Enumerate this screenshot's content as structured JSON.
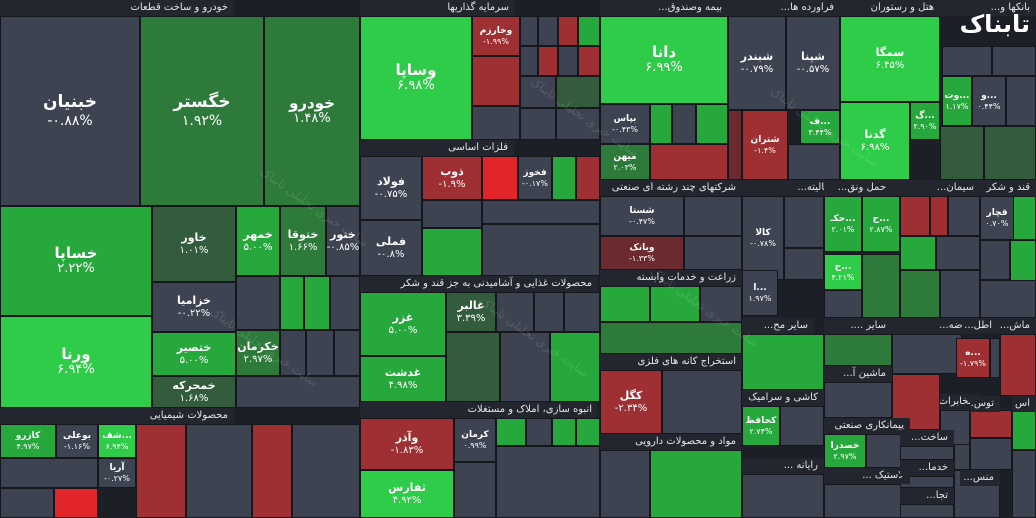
{
  "colors": {
    "strong_green": "#2ecc48",
    "green": "#27a83c",
    "mid_green": "#2d7a3a",
    "dark_green": "#335c3c",
    "neutral": "#3d4350",
    "dark_red": "#6b2a2e",
    "red": "#9e2f33",
    "strong_red": "#e0262a"
  },
  "logo": {
    "text": "تابناک"
  },
  "watermark": "سایت خبری تحلیلی تابناک",
  "sectors": [
    {
      "label": "خودرو و ساخت قطعات"
    },
    {
      "label": "سرمایه گذاریها"
    },
    {
      "label": "بیمه وصندوق..."
    },
    {
      "label": "فراورده ها..."
    },
    {
      "label": "هتل و رستوران"
    },
    {
      "label": "بانکها و..."
    },
    {
      "label": "فلزات اساسی"
    },
    {
      "label": "محصولات غذایی و آشامیدنی به جز قند و شکر"
    },
    {
      "label": "شرکتهای چند رشته ای صنعتی"
    },
    {
      "label": "فعالیته..."
    },
    {
      "label": "حمل ونق..."
    },
    {
      "label": "سیمان..."
    },
    {
      "label": "قند و شکر"
    },
    {
      "label": "محصولات شیمیایی"
    },
    {
      "label": "انبوه سازی، املاک و مستغلات"
    },
    {
      "label": "زراعت و خدمات وابسته"
    },
    {
      "label": "استخراج کانه های فلزی"
    },
    {
      "label": "مواد و محصولات دارویی"
    },
    {
      "label": "سایر مح..."
    },
    {
      "label": "سایر ...."
    },
    {
      "label": "عرضه..."
    },
    {
      "label": "اطل..."
    },
    {
      "label": "ماش..."
    },
    {
      "label": "ماشین آ..."
    },
    {
      "label": "کاشی و سرامیک"
    },
    {
      "label": "پیمانکاری صنعتی"
    },
    {
      "label": "مخابرات"
    },
    {
      "label": "رایانه ..."
    },
    {
      "label": "لاستیک ..."
    },
    {
      "label": "ساخت..."
    },
    {
      "label": "خدما..."
    },
    {
      "label": "تجا..."
    },
    {
      "label": "منس..."
    },
    {
      "label": "توس..."
    },
    {
      "label": "اس"
    }
  ],
  "cells": [
    {
      "name": "خبنیان",
      "value": "-۰.۸۸%"
    },
    {
      "name": "خگستر",
      "value": "۱.۹۲%"
    },
    {
      "name": "خودرو",
      "value": "۱.۴۸%"
    },
    {
      "name": "خساپا",
      "value": "۲.۲۲%"
    },
    {
      "name": "خاور",
      "value": "۱.۰۱%"
    },
    {
      "name": "خمهر",
      "value": "۵.۰۰%"
    },
    {
      "name": "ختوقا",
      "value": "۱.۶۶%"
    },
    {
      "name": "ختور",
      "value": "-۰.۸۵%"
    },
    {
      "name": "خزامیا",
      "value": "-۰.۲۲%"
    },
    {
      "name": "ورنا",
      "value": "۶.۹۴%"
    },
    {
      "name": "ختصیر",
      "value": "۵.۰۰%"
    },
    {
      "name": "خکرمان",
      "value": "۲.۹۷%"
    },
    {
      "name": "خمحرکه",
      "value": "۱.۶۸%"
    },
    {
      "name": "وساپا",
      "value": "۶.۹۸%"
    },
    {
      "name": "وخارزم",
      "value": "-۱.۹۹%"
    },
    {
      "name": "دانا",
      "value": "۶.۹۹%"
    },
    {
      "name": "شبندر",
      "value": "-۰.۷۹%"
    },
    {
      "name": "شپنا",
      "value": "-۰.۵۷%"
    },
    {
      "name": "سمگا",
      "value": "۶.۴۵%"
    },
    {
      "name": "گدنا",
      "value": "۶.۹۸%"
    },
    {
      "name": "بپاس",
      "value": "-۰.۴۳%"
    },
    {
      "name": "میهن",
      "value": "۲.۰۳%"
    },
    {
      "name": "شتران",
      "value": "-۱.۴%"
    },
    {
      "name": "فولاد",
      "value": "-۰.۷۵%"
    },
    {
      "name": "ذوب",
      "value": "-۱.۹%"
    },
    {
      "name": "فخوز",
      "value": "-۰.۱۷%"
    },
    {
      "name": "فملی",
      "value": "-۰.۸%"
    },
    {
      "name": "شستا",
      "value": "-۰.۴۷%"
    },
    {
      "name": "وبانک",
      "value": "-۱.۳۳%"
    },
    {
      "name": "کالا",
      "value": "-۰.۷۸%"
    },
    {
      "name": "غزر",
      "value": "۵.۰۰%"
    },
    {
      "name": "غالبر",
      "value": "۳.۳۹%"
    },
    {
      "name": "غدشت",
      "value": "۴.۹۸%"
    },
    {
      "name": "کگل",
      "value": "-۲.۳۴%"
    },
    {
      "name": "وآذر",
      "value": "-۱.۸۳%"
    },
    {
      "name": "ثفارس",
      "value": "۴.۹۲%"
    },
    {
      "name": "کرمان",
      "value": "۰.۹۹%"
    },
    {
      "name": "کازرو",
      "value": "۴.۹۷%"
    },
    {
      "name": "بوعلی",
      "value": "-۱.۱۶%"
    },
    {
      "name": "شف...",
      "value": "۶.۹۴%"
    },
    {
      "name": "آریا",
      "value": "-۰.۲۷%"
    },
    {
      "name": "کحافظ",
      "value": "۲.۷۴%"
    },
    {
      "name": "خصدرا",
      "value": "۲.۹۷%"
    },
    {
      "name": "حکـ...",
      "value": "۲.۰۱%"
    },
    {
      "name": "ح...",
      "value": "۲.۸۷%"
    },
    {
      "name": "ح...",
      "value": "۴.۲۱%"
    },
    {
      "name": "قچار",
      "value": "۰.۷۰%"
    },
    {
      "name": "گ...",
      "value": "۲.۹۰%"
    },
    {
      "name": "وت...",
      "value": "۱.۱۷%"
    },
    {
      "name": "و...",
      "value": "۰.۴۴%"
    },
    {
      "name": "ا...",
      "value": "۱.۹۷%"
    },
    {
      "name": "ه...",
      "value": "-۱.۷۹%"
    },
    {
      "name": "ف...",
      "value": "۳.۴۴%"
    }
  ]
}
